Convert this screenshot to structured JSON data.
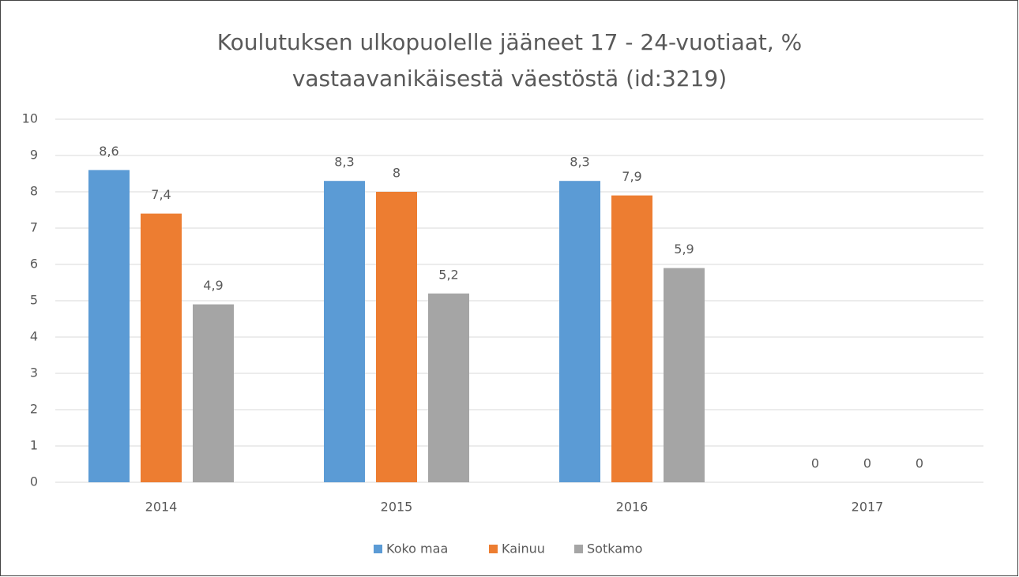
{
  "chart_data": {
    "type": "bar",
    "title": [
      "Koulutuksen ulkopuolelle jääneet 17 - 24-vuotiaat, %",
      "vastaavanikäisestä väestöstä (id:3219)"
    ],
    "categories": [
      "2014",
      "2015",
      "2016",
      "2017"
    ],
    "series": [
      {
        "name": "Koko maa",
        "color": "#5b9bd5",
        "values": [
          8.6,
          8.3,
          8.3,
          0
        ],
        "value_labels": [
          "8,6",
          "8,3",
          "8,3",
          "0"
        ]
      },
      {
        "name": "Kainuu",
        "color": "#ed7d31",
        "values": [
          7.4,
          8,
          7.9,
          0
        ],
        "value_labels": [
          "7,4",
          "8",
          "7,9",
          "0"
        ]
      },
      {
        "name": "Sotkamo",
        "color": "#a5a5a5",
        "values": [
          4.9,
          5.2,
          5.9,
          0
        ],
        "value_labels": [
          "4,9",
          "5,2",
          "5,9",
          "0"
        ]
      }
    ],
    "ylim": [
      0,
      10
    ],
    "yticks": [
      0,
      1,
      2,
      3,
      4,
      5,
      6,
      7,
      8,
      9,
      10
    ],
    "grid": true,
    "legend": "bottom"
  }
}
